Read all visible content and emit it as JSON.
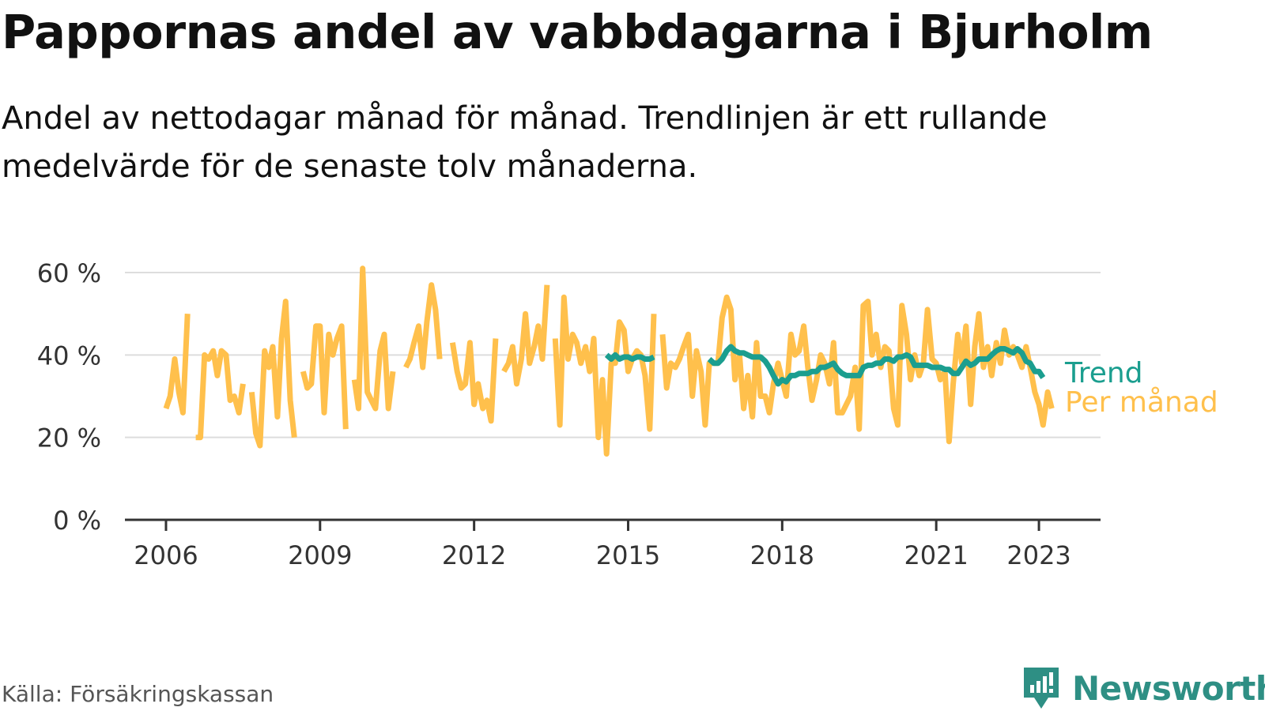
{
  "header": {
    "title": "Pappornas andel av vabbdagarna i Bjurholm",
    "subtitle": "Andel av nettodagar månad för månad. Trendlinjen är ett rullande medelvärde för de senaste tolv månaderna."
  },
  "footer": {
    "source": "Källa: Försäkringskassan",
    "brand": "Newsworthy"
  },
  "colors": {
    "monthly": "#ffc04c",
    "trend": "#1b9e8f",
    "grid": "#dddddd",
    "axis": "#333333",
    "brand": "#2e8f84"
  },
  "icons": {
    "brand": "bar-chart-logo-icon"
  },
  "chart_data": {
    "type": "line",
    "y_unit": "%",
    "ylim": [
      0,
      60
    ],
    "yticks": [
      {
        "value": 0,
        "label": "0 %"
      },
      {
        "value": 20,
        "label": "20 %"
      },
      {
        "value": 40,
        "label": "40 %"
      },
      {
        "value": 60,
        "label": "60 %"
      }
    ],
    "xlim": [
      2005.2,
      2024.2
    ],
    "xticks": [
      {
        "value": 2006,
        "label": "2006"
      },
      {
        "value": 2009,
        "label": "2009"
      },
      {
        "value": 2012,
        "label": "2012"
      },
      {
        "value": 2015,
        "label": "2015"
      },
      {
        "value": 2018,
        "label": "2018"
      },
      {
        "value": 2021,
        "label": "2021"
      },
      {
        "value": 2023,
        "label": "2023"
      }
    ],
    "grid": true,
    "legend": "inline-right",
    "series": [
      {
        "name": "Per månad",
        "points": [
          [
            2006.0,
            27
          ],
          [
            2006.08,
            30
          ],
          [
            2006.17,
            39
          ],
          [
            2006.25,
            31
          ],
          [
            2006.33,
            26
          ],
          [
            2006.42,
            50
          ],
          [
            null,
            null
          ],
          [
            2006.58,
            20
          ],
          [
            2006.67,
            20
          ],
          [
            2006.75,
            40
          ],
          [
            2006.83,
            39
          ],
          [
            2006.92,
            41
          ],
          [
            2007.0,
            35
          ],
          [
            2007.08,
            41
          ],
          [
            2007.17,
            40
          ],
          [
            2007.25,
            29
          ],
          [
            2007.33,
            30
          ],
          [
            2007.42,
            26
          ],
          [
            2007.5,
            33
          ],
          [
            null,
            null
          ],
          [
            2007.67,
            31
          ],
          [
            2007.75,
            21
          ],
          [
            2007.83,
            18
          ],
          [
            2007.92,
            41
          ],
          [
            2008.0,
            37
          ],
          [
            2008.08,
            42
          ],
          [
            2008.17,
            25
          ],
          [
            2008.25,
            44
          ],
          [
            2008.33,
            53
          ],
          [
            2008.42,
            29
          ],
          [
            2008.5,
            20
          ],
          [
            null,
            null
          ],
          [
            2008.67,
            36
          ],
          [
            2008.75,
            32
          ],
          [
            2008.83,
            33
          ],
          [
            2008.92,
            47
          ],
          [
            2009.0,
            47
          ],
          [
            2009.08,
            26
          ],
          [
            2009.17,
            45
          ],
          [
            2009.25,
            40
          ],
          [
            2009.33,
            44
          ],
          [
            2009.42,
            47
          ],
          [
            2009.5,
            22
          ],
          [
            null,
            null
          ],
          [
            2009.67,
            34
          ],
          [
            2009.75,
            27
          ],
          [
            2009.83,
            61
          ],
          [
            2009.92,
            31
          ],
          [
            2010.0,
            29
          ],
          [
            2010.08,
            27
          ],
          [
            2010.17,
            41
          ],
          [
            2010.25,
            45
          ],
          [
            2010.33,
            27
          ],
          [
            2010.42,
            36
          ],
          [
            null,
            null
          ],
          [
            2010.67,
            37
          ],
          [
            2010.75,
            39
          ],
          [
            2010.83,
            43
          ],
          [
            2010.92,
            47
          ],
          [
            2011.0,
            37
          ],
          [
            2011.08,
            48
          ],
          [
            2011.17,
            57
          ],
          [
            2011.25,
            51
          ],
          [
            2011.33,
            39
          ],
          [
            null,
            null
          ],
          [
            2011.58,
            43
          ],
          [
            2011.67,
            36
          ],
          [
            2011.75,
            32
          ],
          [
            2011.83,
            33
          ],
          [
            2011.92,
            43
          ],
          [
            2012.0,
            28
          ],
          [
            2012.08,
            33
          ],
          [
            2012.17,
            27
          ],
          [
            2012.25,
            29
          ],
          [
            2012.33,
            24
          ],
          [
            2012.42,
            44
          ],
          [
            null,
            null
          ],
          [
            2012.58,
            36
          ],
          [
            2012.67,
            38
          ],
          [
            2012.75,
            42
          ],
          [
            2012.83,
            33
          ],
          [
            2012.92,
            39
          ],
          [
            2013.0,
            50
          ],
          [
            2013.08,
            38
          ],
          [
            2013.17,
            42
          ],
          [
            2013.25,
            47
          ],
          [
            2013.33,
            39
          ],
          [
            2013.42,
            57
          ],
          [
            null,
            null
          ],
          [
            2013.58,
            44
          ],
          [
            2013.67,
            23
          ],
          [
            2013.75,
            54
          ],
          [
            2013.83,
            39
          ],
          [
            2013.92,
            45
          ],
          [
            2014.0,
            43
          ],
          [
            2014.08,
            38
          ],
          [
            2014.17,
            42
          ],
          [
            2014.25,
            36
          ],
          [
            2014.33,
            44
          ],
          [
            2014.42,
            20
          ],
          [
            2014.5,
            34
          ],
          [
            2014.58,
            16
          ],
          [
            2014.67,
            38
          ],
          [
            2014.75,
            38
          ],
          [
            2014.83,
            48
          ],
          [
            2014.92,
            46
          ],
          [
            2015.0,
            36
          ],
          [
            2015.08,
            39
          ],
          [
            2015.17,
            41
          ],
          [
            2015.25,
            40
          ],
          [
            2015.33,
            35
          ],
          [
            2015.42,
            22
          ],
          [
            2015.5,
            50
          ],
          [
            null,
            null
          ],
          [
            2015.67,
            45
          ],
          [
            2015.75,
            32
          ],
          [
            2015.83,
            38
          ],
          [
            2015.92,
            37
          ],
          [
            2016.0,
            39
          ],
          [
            2016.08,
            42
          ],
          [
            2016.17,
            45
          ],
          [
            2016.25,
            30
          ],
          [
            2016.33,
            41
          ],
          [
            2016.42,
            36
          ],
          [
            2016.5,
            23
          ],
          [
            2016.58,
            38
          ],
          [
            2016.67,
            38
          ],
          [
            2016.75,
            38
          ],
          [
            2016.83,
            49
          ],
          [
            2016.92,
            54
          ],
          [
            2017.0,
            51
          ],
          [
            2017.08,
            34
          ],
          [
            2017.17,
            40
          ],
          [
            2017.25,
            27
          ],
          [
            2017.33,
            35
          ],
          [
            2017.42,
            25
          ],
          [
            2017.5,
            43
          ],
          [
            2017.58,
            30
          ],
          [
            2017.67,
            30
          ],
          [
            2017.75,
            26
          ],
          [
            2017.83,
            33
          ],
          [
            2017.92,
            38
          ],
          [
            2018.0,
            34
          ],
          [
            2018.08,
            30
          ],
          [
            2018.17,
            45
          ],
          [
            2018.25,
            40
          ],
          [
            2018.33,
            41
          ],
          [
            2018.42,
            47
          ],
          [
            2018.5,
            37
          ],
          [
            2018.58,
            29
          ],
          [
            2018.67,
            34
          ],
          [
            2018.75,
            40
          ],
          [
            2018.83,
            38
          ],
          [
            2018.92,
            33
          ],
          [
            2019.0,
            43
          ],
          [
            2019.08,
            26
          ],
          [
            2019.17,
            26
          ],
          [
            2019.25,
            28
          ],
          [
            2019.33,
            30
          ],
          [
            2019.42,
            37
          ],
          [
            2019.5,
            22
          ],
          [
            2019.58,
            52
          ],
          [
            2019.67,
            53
          ],
          [
            2019.75,
            40
          ],
          [
            2019.83,
            45
          ],
          [
            2019.92,
            37
          ],
          [
            2020.0,
            42
          ],
          [
            2020.08,
            41
          ],
          [
            2020.17,
            27
          ],
          [
            2020.25,
            23
          ],
          [
            2020.33,
            52
          ],
          [
            2020.42,
            45
          ],
          [
            2020.5,
            34
          ],
          [
            2020.58,
            40
          ],
          [
            2020.67,
            35
          ],
          [
            2020.75,
            38
          ],
          [
            2020.83,
            51
          ],
          [
            2020.92,
            39
          ],
          [
            2021.0,
            38
          ],
          [
            2021.08,
            34
          ],
          [
            2021.17,
            36
          ],
          [
            2021.25,
            19
          ],
          [
            2021.33,
            33
          ],
          [
            2021.42,
            45
          ],
          [
            2021.5,
            38
          ],
          [
            2021.58,
            47
          ],
          [
            2021.67,
            28
          ],
          [
            2021.75,
            42
          ],
          [
            2021.83,
            50
          ],
          [
            2021.92,
            37
          ],
          [
            2022.0,
            42
          ],
          [
            2022.08,
            35
          ],
          [
            2022.17,
            43
          ],
          [
            2022.25,
            38
          ],
          [
            2022.33,
            46
          ],
          [
            2022.42,
            40
          ],
          [
            2022.5,
            42
          ],
          [
            2022.58,
            40
          ],
          [
            2022.67,
            37
          ],
          [
            2022.75,
            42
          ],
          [
            2022.83,
            37
          ],
          [
            2022.92,
            31
          ],
          [
            2023.0,
            28
          ],
          [
            2023.08,
            23
          ],
          [
            2023.17,
            31
          ],
          [
            2023.25,
            27
          ]
        ]
      },
      {
        "name": "Trend",
        "points": [
          [
            2014.58,
            40
          ],
          [
            2014.67,
            39
          ],
          [
            2014.75,
            40
          ],
          [
            2014.83,
            39
          ],
          [
            2014.92,
            39.5
          ],
          [
            2015.0,
            39.5
          ],
          [
            2015.08,
            39
          ],
          [
            2015.17,
            39.5
          ],
          [
            2015.25,
            39.5
          ],
          [
            2015.33,
            39
          ],
          [
            2015.42,
            39
          ],
          [
            2015.5,
            39.5
          ],
          [
            null,
            null
          ],
          [
            2016.58,
            39
          ],
          [
            2016.67,
            38
          ],
          [
            2016.75,
            38
          ],
          [
            2016.83,
            39
          ],
          [
            2016.92,
            41
          ],
          [
            2017.0,
            42
          ],
          [
            2017.08,
            41
          ],
          [
            2017.17,
            40.5
          ],
          [
            2017.25,
            40.5
          ],
          [
            2017.33,
            40
          ],
          [
            2017.42,
            39.5
          ],
          [
            2017.5,
            39.5
          ],
          [
            2017.58,
            39.5
          ],
          [
            2017.67,
            38.5
          ],
          [
            2017.75,
            37
          ],
          [
            2017.83,
            35
          ],
          [
            2017.92,
            33
          ],
          [
            2018.0,
            34
          ],
          [
            2018.08,
            33.5
          ],
          [
            2018.17,
            35
          ],
          [
            2018.25,
            35
          ],
          [
            2018.33,
            35.5
          ],
          [
            2018.42,
            35.5
          ],
          [
            2018.5,
            35.5
          ],
          [
            2018.58,
            36
          ],
          [
            2018.67,
            36
          ],
          [
            2018.75,
            37
          ],
          [
            2018.83,
            37
          ],
          [
            2018.92,
            37.5
          ],
          [
            2019.0,
            38
          ],
          [
            2019.08,
            36.5
          ],
          [
            2019.17,
            35.5
          ],
          [
            2019.25,
            35
          ],
          [
            2019.33,
            35
          ],
          [
            2019.42,
            35
          ],
          [
            2019.5,
            35
          ],
          [
            2019.58,
            37
          ],
          [
            2019.67,
            37.5
          ],
          [
            2019.75,
            37.5
          ],
          [
            2019.83,
            38
          ],
          [
            2019.92,
            38
          ],
          [
            2020.0,
            39
          ],
          [
            2020.08,
            39
          ],
          [
            2020.17,
            38.5
          ],
          [
            2020.25,
            39.5
          ],
          [
            2020.33,
            39.5
          ],
          [
            2020.42,
            40
          ],
          [
            2020.5,
            39.5
          ],
          [
            2020.58,
            37.5
          ],
          [
            2020.67,
            37.5
          ],
          [
            2020.75,
            37.5
          ],
          [
            2020.83,
            37.5
          ],
          [
            2020.92,
            37
          ],
          [
            2021.0,
            37
          ],
          [
            2021.08,
            37
          ],
          [
            2021.17,
            36.5
          ],
          [
            2021.25,
            36.5
          ],
          [
            2021.33,
            35.5
          ],
          [
            2021.42,
            35.5
          ],
          [
            2021.5,
            37
          ],
          [
            2021.58,
            38.5
          ],
          [
            2021.67,
            37.5
          ],
          [
            2021.75,
            38
          ],
          [
            2021.83,
            39
          ],
          [
            2021.92,
            39
          ],
          [
            2022.0,
            39
          ],
          [
            2022.08,
            40
          ],
          [
            2022.17,
            41
          ],
          [
            2022.25,
            41.5
          ],
          [
            2022.33,
            41.5
          ],
          [
            2022.42,
            41
          ],
          [
            2022.5,
            40.5
          ],
          [
            2022.58,
            41.5
          ],
          [
            2022.67,
            40.5
          ],
          [
            2022.75,
            38.5
          ],
          [
            2022.83,
            38
          ],
          [
            2022.92,
            36
          ],
          [
            2023.0,
            36
          ],
          [
            2023.08,
            34.5
          ]
        ]
      }
    ]
  }
}
